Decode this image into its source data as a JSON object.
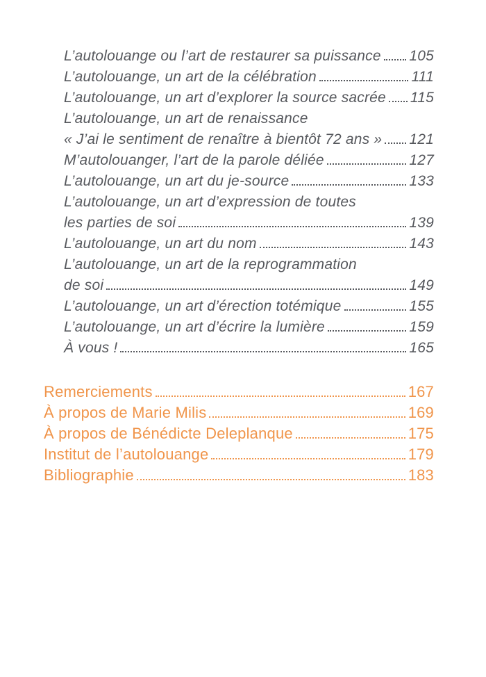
{
  "page": {
    "background": "#ffffff"
  },
  "colors": {
    "sub_text": "#56585d",
    "main_text": "#f0954b"
  },
  "toc": {
    "sub_entries": [
      {
        "label": "L’autolouange ou l’art de restaurer sa puissance",
        "page": "105"
      },
      {
        "label": "L’autolouange, un art de la célébration",
        "page": "111"
      },
      {
        "label": "L’autolouange, un art d’explorer la source sacrée",
        "page": "115"
      },
      {
        "label": "L’autolouange, un art de renaissance",
        "page": ""
      },
      {
        "label": "« J’ai le sentiment de renaître à bientôt 72 ans »",
        "page": "121"
      },
      {
        "label": "M’autolouanger, l’art de la parole déliée",
        "page": "127"
      },
      {
        "label": "L’autolouange, un art du je-source",
        "page": "133"
      },
      {
        "label": "L’autolouange, un art d’expression de toutes",
        "page": ""
      },
      {
        "label": "les parties de soi",
        "page": "139"
      },
      {
        "label": "L’autolouange, un art du nom",
        "page": "143"
      },
      {
        "label": "L’autolouange, un art de la reprogrammation",
        "page": ""
      },
      {
        "label": "de soi",
        "page": "149"
      },
      {
        "label": "L’autolouange, un art d’érection totémique",
        "page": "155"
      },
      {
        "label": "L’autolouange, un art d’écrire la lumière",
        "page": "159"
      },
      {
        "label": "À vous !",
        "page": "165"
      }
    ],
    "main_entries": [
      {
        "label": "Remerciements",
        "page": "167"
      },
      {
        "label": "À propos de Marie Milis",
        "page": "169"
      },
      {
        "label": "À propos de Bénédicte Deleplanque",
        "page": "175"
      },
      {
        "label": "Institut de l’autolouange",
        "page": "179"
      },
      {
        "label": "Bibliographie",
        "page": "183"
      }
    ]
  }
}
